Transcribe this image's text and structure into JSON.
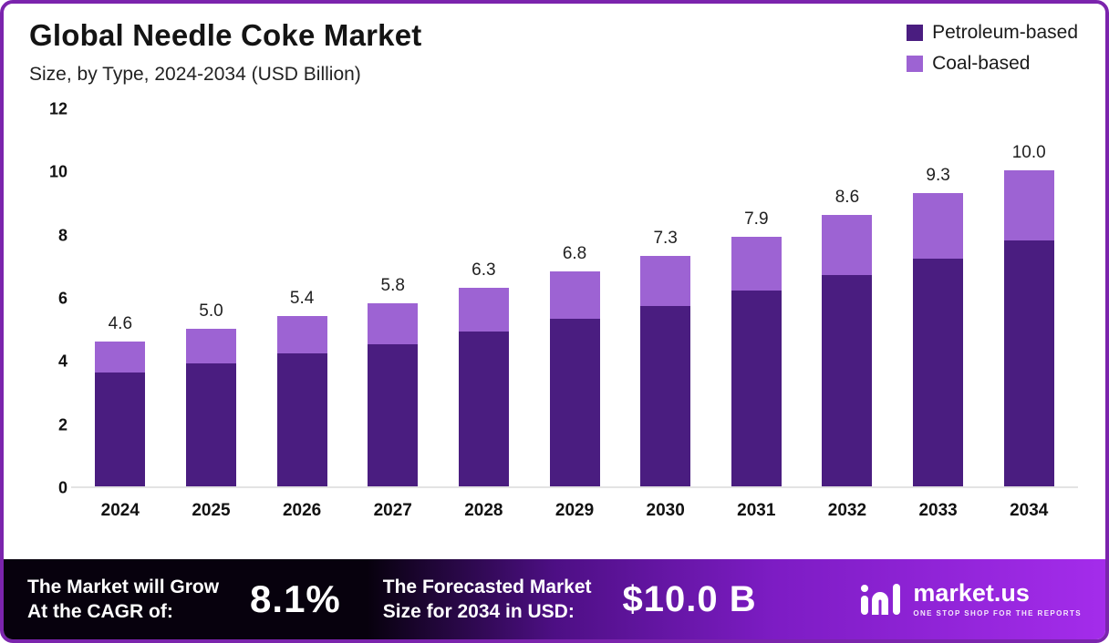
{
  "header": {
    "title": "Global Needle Coke Market",
    "subtitle": "Size, by Type, 2024-2034 (USD Billion)"
  },
  "legend": [
    {
      "label": "Petroleum-based",
      "color": "#4a1d80"
    },
    {
      "label": "Coal-based",
      "color": "#9d63d3"
    }
  ],
  "chart_data": {
    "type": "bar",
    "stacked": true,
    "title": "Global Needle Coke Market Size, by Type, 2024-2034 (USD Billion)",
    "categories": [
      "2024",
      "2025",
      "2026",
      "2027",
      "2028",
      "2029",
      "2030",
      "2031",
      "2032",
      "2033",
      "2034"
    ],
    "series": [
      {
        "name": "Petroleum-based",
        "color": "#4a1d80",
        "values": [
          3.6,
          3.9,
          4.2,
          4.5,
          4.9,
          5.3,
          5.7,
          6.2,
          6.7,
          7.2,
          7.8
        ]
      },
      {
        "name": "Coal-based",
        "color": "#9d63d3",
        "values": [
          1.0,
          1.1,
          1.2,
          1.3,
          1.4,
          1.5,
          1.6,
          1.7,
          1.9,
          2.1,
          2.2
        ]
      }
    ],
    "totals": [
      4.6,
      5.0,
      5.4,
      5.8,
      6.3,
      6.8,
      7.3,
      7.9,
      8.6,
      9.3,
      10.0
    ],
    "total_labels": [
      "4.6",
      "5.0",
      "5.4",
      "5.8",
      "6.3",
      "6.8",
      "7.3",
      "7.9",
      "8.6",
      "9.3",
      "10.0"
    ],
    "xlabel": "",
    "ylabel": "",
    "ylim": [
      0,
      12
    ],
    "yticks": [
      0,
      2,
      4,
      6,
      8,
      10,
      12
    ],
    "grid": false,
    "legend_position": "top-right"
  },
  "footer": {
    "cagr_label_line1": "The Market will Grow",
    "cagr_label_line2": "At the CAGR of:",
    "cagr_value": "8.1%",
    "forecast_label_line1": "The Forecasted Market",
    "forecast_label_line2": "Size for 2034 in USD:",
    "forecast_value": "$10.0 B",
    "brand": "market.us",
    "brand_tagline": "ONE STOP SHOP FOR THE REPORTS"
  }
}
